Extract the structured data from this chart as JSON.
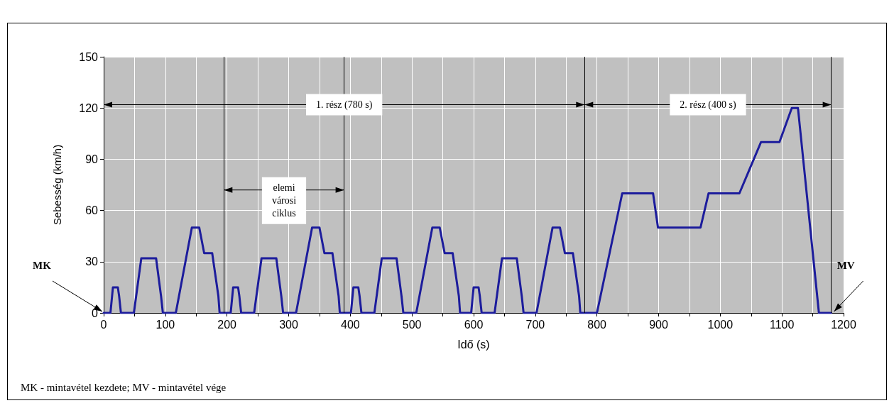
{
  "chart_data": {
    "type": "line",
    "xlabel": "Idő (s)",
    "ylabel": "Sebesség (km/h)",
    "x": [
      0,
      11,
      15,
      23,
      25,
      28,
      49,
      61,
      85,
      93,
      96,
      117,
      143,
      155,
      163,
      176,
      186,
      188,
      195,
      206,
      210,
      218,
      220,
      223,
      244,
      256,
      280,
      288,
      291,
      312,
      338,
      350,
      358,
      371,
      381,
      383,
      390,
      401,
      405,
      413,
      415,
      418,
      439,
      451,
      475,
      483,
      486,
      507,
      533,
      545,
      553,
      566,
      576,
      578,
      585,
      596,
      600,
      608,
      610,
      613,
      634,
      646,
      670,
      678,
      681,
      702,
      728,
      740,
      748,
      761,
      771,
      773,
      780,
      800,
      841,
      891,
      899,
      968,
      981,
      1031,
      1066,
      1096,
      1116,
      1126,
      1160,
      1180
    ],
    "series": [
      {
        "color": "#1c1c9c",
        "values": [
          0,
          0,
          15,
          15,
          10,
          0,
          0,
          32,
          32,
          10,
          0,
          0,
          50,
          50,
          35,
          35,
          10,
          0,
          0,
          0,
          15,
          15,
          10,
          0,
          0,
          32,
          32,
          10,
          0,
          0,
          50,
          50,
          35,
          35,
          10,
          0,
          0,
          0,
          15,
          15,
          10,
          0,
          0,
          32,
          32,
          10,
          0,
          0,
          50,
          50,
          35,
          35,
          10,
          0,
          0,
          0,
          15,
          15,
          10,
          0,
          0,
          32,
          32,
          10,
          0,
          0,
          50,
          50,
          35,
          35,
          10,
          0,
          0,
          0,
          70,
          70,
          50,
          50,
          70,
          70,
          100,
          100,
          120,
          120,
          0,
          0
        ]
      }
    ],
    "xlim": [
      0,
      1200
    ],
    "xticks": [
      0,
      {
        "value": 50,
        "label": null
      },
      100,
      {
        "value": 150,
        "label": null
      },
      200,
      {
        "value": 250,
        "label": null
      },
      300,
      {
        "value": 350,
        "label": null
      },
      400,
      {
        "value": 450,
        "label": null
      },
      500,
      {
        "value": 550,
        "label": null
      },
      600,
      {
        "value": 650,
        "label": null
      },
      700,
      {
        "value": 750,
        "label": null
      },
      800,
      {
        "value": 850,
        "label": null
      },
      900,
      {
        "value": 950,
        "label": null
      },
      1000,
      {
        "value": 1050,
        "label": null
      },
      1100,
      {
        "value": 1150,
        "label": null
      },
      1200
    ],
    "ylim": [
      0,
      150
    ],
    "yticks": [
      0,
      30,
      60,
      90,
      120,
      150
    ],
    "grid": true,
    "marker": "none",
    "line_style": "solid",
    "ref_lines": [
      {
        "axis": "x",
        "value": 195,
        "color": "#000000"
      },
      {
        "axis": "x",
        "value": 390,
        "color": "#000000"
      },
      {
        "axis": "x",
        "value": 780,
        "color": "#000000"
      },
      {
        "axis": "x",
        "value": 1180,
        "color": "#000000"
      }
    ],
    "annotations": [
      "1. rész (780 s)",
      "2. rész (400 s)",
      "elemi\nvárosi\nciklus",
      {
        "text": "MK",
        "x": 0,
        "y": 0
      },
      {
        "text": "MV",
        "x": 1180,
        "y": 0
      },
      "MK - mintavétel kezdete; MV - mintavétel vége"
    ]
  }
}
